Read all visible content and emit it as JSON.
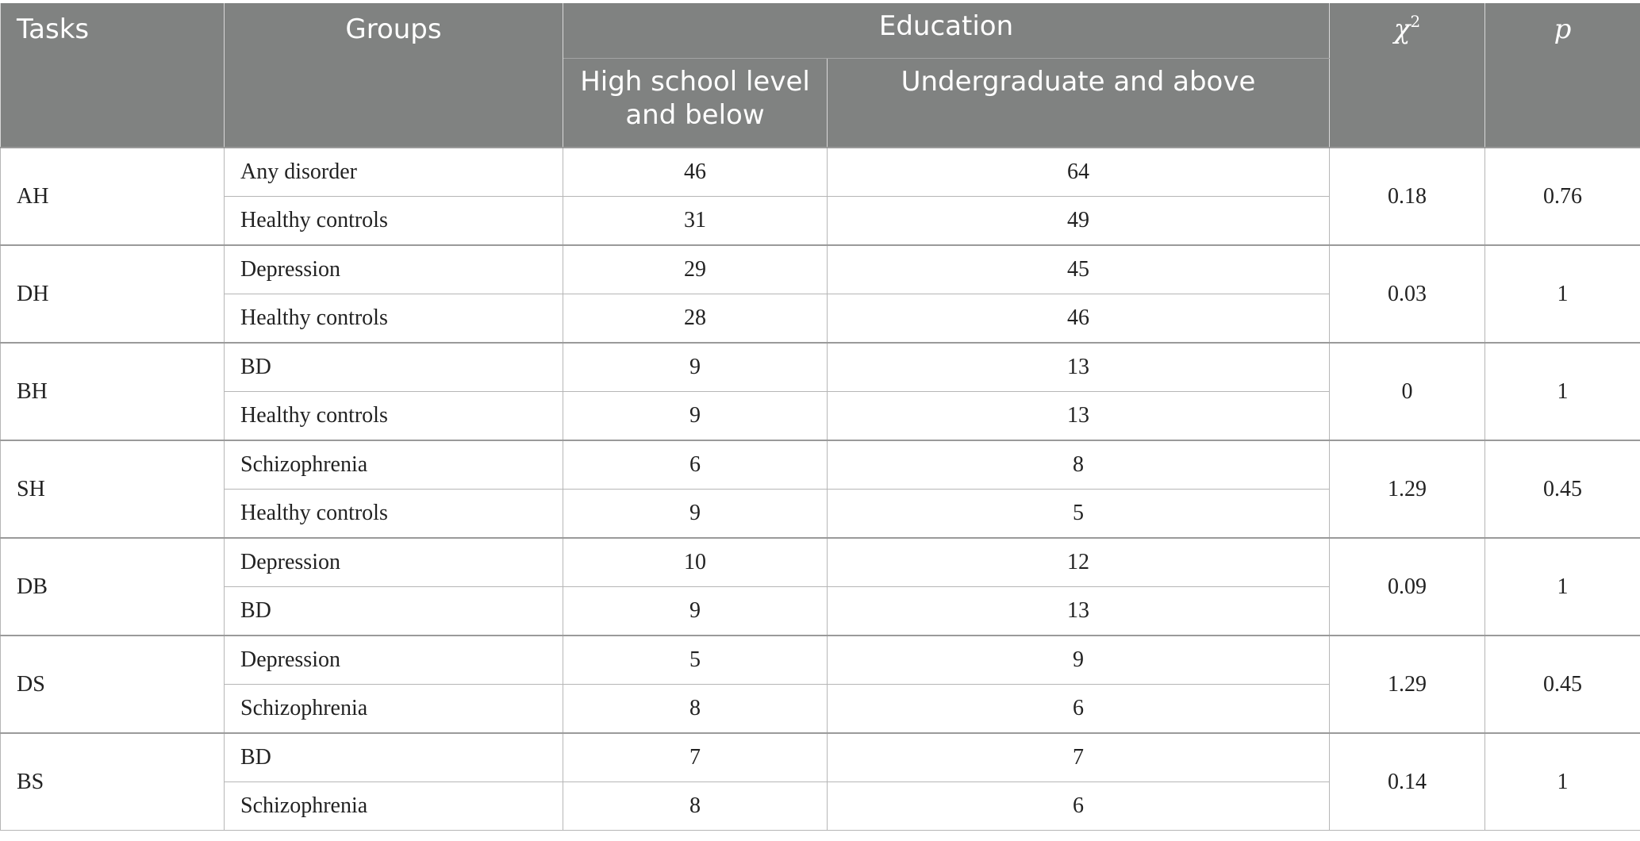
{
  "table": {
    "headers": {
      "tasks": "Tasks",
      "groups": "Groups",
      "education": "Education",
      "high_school": "High school level and below",
      "undergraduate": "Undergraduate and above",
      "chi_symbol": "χ",
      "chi_sup": "2",
      "p": "p"
    },
    "rows": [
      {
        "task": "AH",
        "group": "Any disorder",
        "high_school": "46",
        "undergraduate": "64",
        "chi2": "0.18",
        "p": "0.76"
      },
      {
        "task": "",
        "group": "Healthy controls",
        "high_school": "31",
        "undergraduate": "49"
      },
      {
        "task": "DH",
        "group": "Depression",
        "high_school": "29",
        "undergraduate": "45",
        "chi2": "0.03",
        "p": "1"
      },
      {
        "task": "",
        "group": "Healthy controls",
        "high_school": "28",
        "undergraduate": "46"
      },
      {
        "task": "BH",
        "group": "BD",
        "high_school": "9",
        "undergraduate": "13",
        "chi2": "0",
        "p": "1"
      },
      {
        "task": "",
        "group": "Healthy controls",
        "high_school": "9",
        "undergraduate": "13"
      },
      {
        "task": "SH",
        "group": "Schizophrenia",
        "high_school": "6",
        "undergraduate": "8",
        "chi2": "1.29",
        "p": "0.45"
      },
      {
        "task": "",
        "group": "Healthy controls",
        "high_school": "9",
        "undergraduate": "5"
      },
      {
        "task": "DB",
        "group": "Depression",
        "high_school": "10",
        "undergraduate": "12",
        "chi2": "0.09",
        "p": "1"
      },
      {
        "task": "",
        "group": "BD",
        "high_school": "9",
        "undergraduate": "13"
      },
      {
        "task": "DS",
        "group": "Depression",
        "high_school": "5",
        "undergraduate": "9",
        "chi2": "1.29",
        "p": "0.45"
      },
      {
        "task": "",
        "group": "Schizophrenia",
        "high_school": "8",
        "undergraduate": "6"
      },
      {
        "task": "BS",
        "group": "BD",
        "high_school": "7",
        "undergraduate": "7",
        "chi2": "0.14",
        "p": "1"
      },
      {
        "task": "",
        "group": "Schizophrenia",
        "high_school": "8",
        "undergraduate": "6"
      }
    ]
  }
}
